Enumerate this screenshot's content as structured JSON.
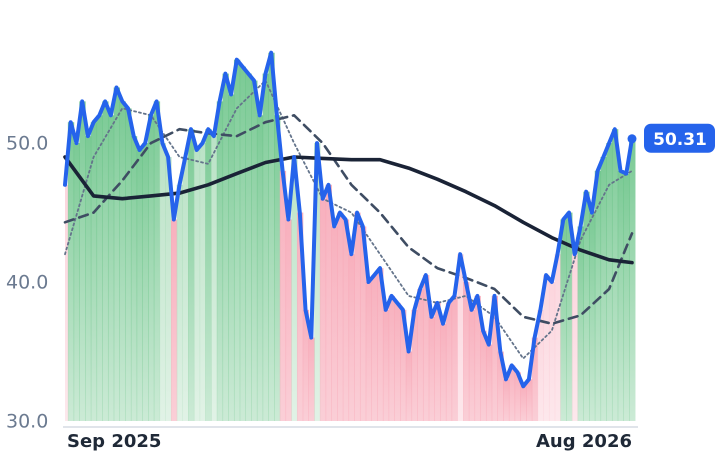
{
  "chart_data": {
    "type": "line",
    "ylim": [
      30,
      59
    ],
    "yticks": [
      {
        "value": 30,
        "label": "30.0"
      },
      {
        "value": 40,
        "label": "40.0"
      },
      {
        "value": 50,
        "label": "50.0"
      }
    ],
    "xlim": [
      0,
      99
    ],
    "xticks": [
      {
        "value": 0,
        "label": "Sep 2025"
      },
      {
        "value": 99,
        "label": "Aug 2026"
      }
    ],
    "grid": false,
    "series": [
      {
        "color": "#2563eb",
        "values": [
          47,
          51.5,
          50,
          53,
          50.5,
          51.5,
          52,
          53,
          52,
          54,
          53,
          52.5,
          50.5,
          49.5,
          50,
          52,
          53,
          50,
          49,
          44.5,
          47,
          49,
          51,
          49.5,
          50,
          51,
          50.5,
          53,
          55,
          53.5,
          56,
          55.5,
          55,
          54.5,
          52,
          55,
          56.5,
          52,
          48,
          44.5,
          49,
          45,
          38,
          36,
          50,
          46,
          47,
          44,
          45,
          44.5,
          42,
          45,
          44,
          40,
          40.5,
          41,
          38,
          39,
          38.5,
          38,
          35,
          38,
          39.5,
          40.5,
          37.5,
          38.5,
          37,
          38.5,
          39,
          42,
          40,
          38,
          39,
          36.5,
          35.5,
          39,
          35,
          33,
          34,
          33.5,
          32.5,
          33,
          36,
          38,
          40.5,
          40,
          42,
          44.5,
          45,
          42,
          44,
          46.5,
          45,
          48,
          49,
          50,
          51,
          48,
          47.8,
          50.31
        ]
      },
      {
        "color": "#64748b",
        "style": "dotted",
        "x": [
          0,
          5,
          10,
          15,
          20,
          25,
          30,
          35,
          40,
          45,
          50,
          55,
          60,
          65,
          70,
          75,
          80,
          85,
          90,
          95,
          99
        ],
        "values": [
          42,
          49,
          52.5,
          52,
          49,
          48.5,
          52.5,
          54.5,
          50,
          46,
          45,
          42,
          39,
          38.5,
          39,
          37.5,
          34.5,
          36.5,
          43,
          47,
          48
        ]
      },
      {
        "color": "#3f4d63",
        "style": "dashed",
        "x": [
          0,
          5,
          10,
          15,
          20,
          25,
          30,
          35,
          40,
          45,
          50,
          55,
          60,
          65,
          70,
          75,
          80,
          85,
          90,
          95,
          99
        ],
        "values": [
          44.3,
          45,
          47.3,
          50,
          51,
          50.7,
          50.5,
          51.5,
          52,
          50,
          47,
          45,
          42.5,
          41,
          40.3,
          39.5,
          37.5,
          37,
          37.6,
          39.5,
          43.5
        ]
      },
      {
        "color": "#1a2336",
        "style": "solid",
        "x": [
          0,
          5,
          10,
          15,
          20,
          25,
          30,
          35,
          40,
          45,
          50,
          55,
          60,
          65,
          70,
          75,
          80,
          85,
          90,
          95,
          99
        ],
        "values": [
          49,
          46.2,
          46,
          46.2,
          46.4,
          47,
          47.8,
          48.6,
          49,
          48.9,
          48.8,
          48.8,
          48.2,
          47.4,
          46.5,
          45.5,
          44.3,
          43.2,
          42.3,
          41.6,
          41.4
        ]
      }
    ]
  }
}
